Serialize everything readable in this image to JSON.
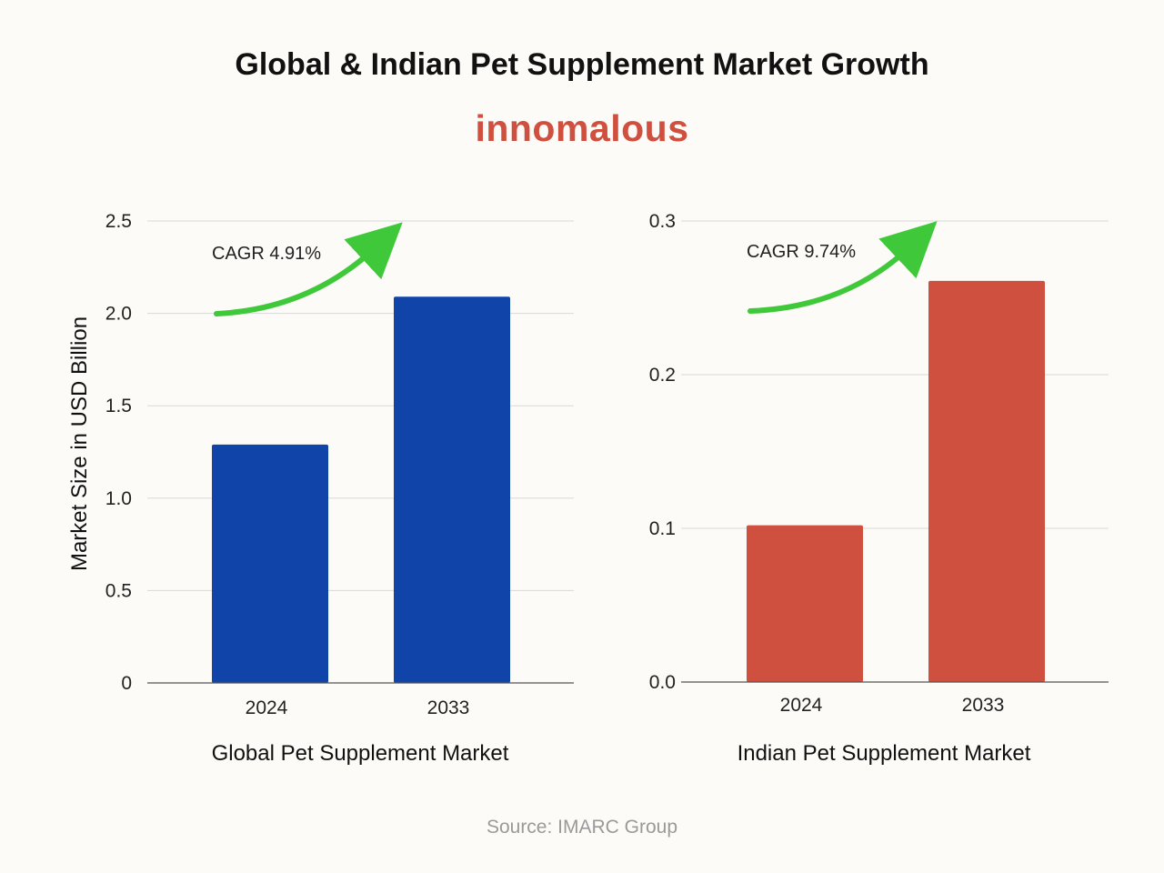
{
  "title": "Global & Indian Pet Supplement Market Growth",
  "brand": {
    "name": "innomalous",
    "color": "#d05040"
  },
  "source": "Source: IMARC Group",
  "colors": {
    "arrow": "#3fc93a",
    "grid": "#d9d9d9",
    "axis": "#555555"
  },
  "chart_data": [
    {
      "type": "bar",
      "categories": [
        "2024",
        "2033"
      ],
      "values": [
        1.29,
        2.09
      ],
      "xlabel": "Global Pet Supplement Market",
      "ylabel": "Market Size in USD Billion",
      "ylim": [
        0,
        2.5
      ],
      "yticks": [
        0,
        0.5,
        1.0,
        1.5,
        2.0,
        2.5
      ],
      "ytick_labels": [
        "0",
        "0.5",
        "1.0",
        "1.5",
        "2.0",
        "2.5"
      ],
      "color": "#1044a8",
      "annotation": "CAGR 4.91%",
      "grid": true
    },
    {
      "type": "bar",
      "categories": [
        "2024",
        "2033"
      ],
      "values": [
        0.102,
        0.261
      ],
      "xlabel": "Indian Pet Supplement Market",
      "ylabel": "",
      "ylim": [
        0,
        0.3
      ],
      "yticks": [
        0,
        0.1,
        0.2,
        0.3
      ],
      "ytick_labels": [
        "0.0",
        "0.1",
        "0.2",
        "0.3"
      ],
      "color": "#d05040",
      "annotation": "CAGR 9.74%",
      "grid": true
    }
  ]
}
